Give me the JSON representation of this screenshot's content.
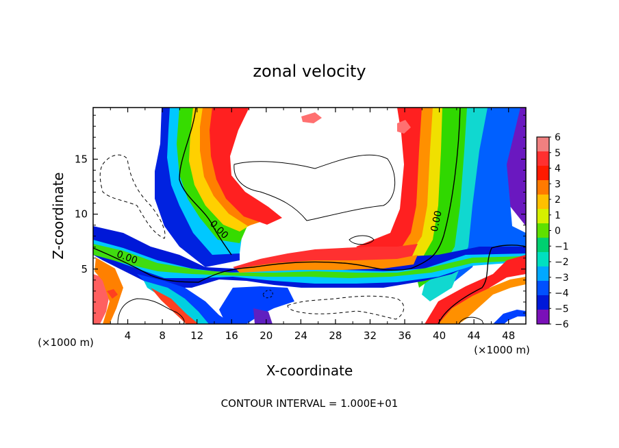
{
  "chart_data": {
    "type": "heatmap",
    "title": "zonal velocity",
    "xlabel": "X-coordinate",
    "ylabel": "Z-coordinate",
    "x_unit_left": "(×1000 m)",
    "x_unit_right": "(×1000 m)",
    "footer": "CONTOUR INTERVAL = 1.000E+01",
    "xlim": [
      0,
      50
    ],
    "ylim": [
      0,
      19.7
    ],
    "x_ticks": [
      4,
      8,
      12,
      16,
      20,
      24,
      28,
      32,
      36,
      40,
      44,
      48
    ],
    "y_ticks": [
      5,
      10,
      15
    ],
    "colorbar": {
      "min": -6,
      "max": 6,
      "labels": [
        "6",
        "5",
        "4",
        "3",
        "2",
        "1",
        "0",
        "−1",
        "−2",
        "−3",
        "−4",
        "−5",
        "−6"
      ],
      "colors": [
        "#f08080",
        "#ff3030",
        "#ff1a00",
        "#ff7a00",
        "#ffc000",
        "#d6f000",
        "#5fe000",
        "#00d070",
        "#00e0c0",
        "#00a8ff",
        "#0050ff",
        "#0018d8",
        "#7a10b8"
      ]
    },
    "contour_labels": [
      {
        "text": "0.00",
        "x": 3.8,
        "z": 5.8
      },
      {
        "text": "0.00",
        "x": 14.3,
        "z": 8.4
      },
      {
        "text": "0.00",
        "x": 40.0,
        "z": 9.3
      }
    ],
    "legend": "right colorbar",
    "grid": false
  }
}
